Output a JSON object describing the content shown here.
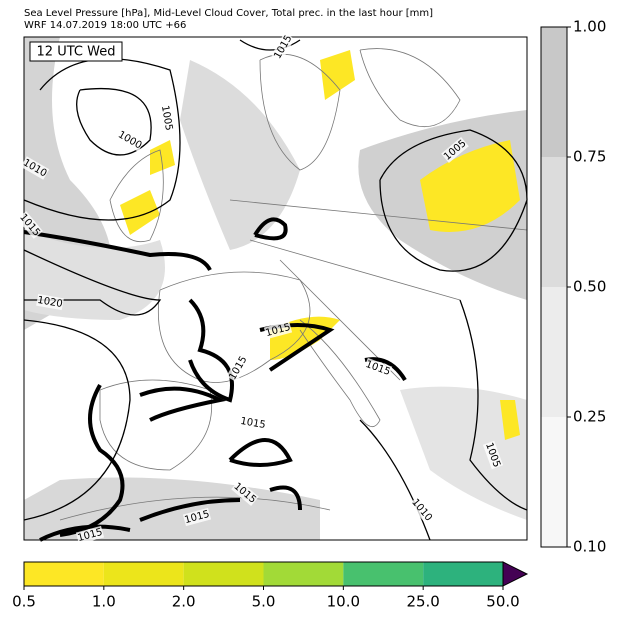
{
  "header": {
    "title": "Sea Level Pressure [hPa], Mid-Level Cloud Cover, Total prec. in the last hour [mm]",
    "subtitle": "WRF 14.07.2019 18:00 UTC +66"
  },
  "map": {
    "time_label": "12 UTC Wed",
    "isobar_labels": [
      "1015",
      "1005",
      "1000",
      "1010",
      "1015",
      "1020",
      "1015",
      "1015",
      "1015",
      "1015",
      "1015",
      "1015",
      "1015",
      "1005",
      "1005",
      "1010"
    ]
  },
  "cloud_colorbar": {
    "ticks": [
      {
        "value": 0.1,
        "label": "0.10"
      },
      {
        "value": 0.25,
        "label": "0.25"
      },
      {
        "value": 0.5,
        "label": "0.50"
      },
      {
        "value": 0.75,
        "label": "0.75"
      },
      {
        "value": 1,
        "label": "1.00"
      }
    ],
    "colors": [
      "#f7f7f7",
      "#ececec",
      "#dcdcdc",
      "#c8c8c8"
    ]
  },
  "precip_colorbar": {
    "ticks": [
      0.5,
      {
        "value": 1,
        "label": "1.0"
      },
      {
        "value": 2,
        "label": "2.0"
      },
      {
        "value": 5,
        "label": "5.0"
      },
      {
        "value": 10,
        "label": "10.0"
      },
      {
        "value": 25,
        "label": "25.0"
      },
      {
        "value": 50,
        "label": "50.0"
      }
    ],
    "colors": [
      "#fde725",
      "#ece51b",
      "#d0e11c",
      "#a2da37",
      "#48c16e",
      "#2db27d",
      "#3b528b",
      "#440154"
    ]
  }
}
